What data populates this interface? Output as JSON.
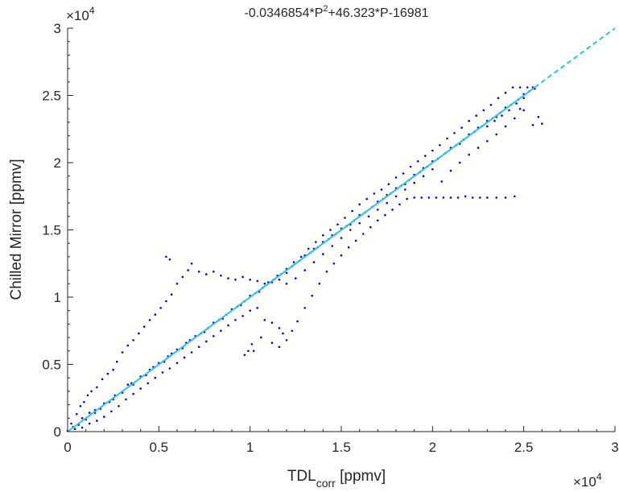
{
  "chart_data": {
    "type": "scatter",
    "title": "-0.0346854*P",
    "title_exp": "2",
    "title_rest": "+46.323*P-16981",
    "xlabel_main": "TDL",
    "xlabel_sub": "corr",
    "xlabel_unit": " [ppmv]",
    "ylabel": "Chilled Mirror [ppmv]",
    "x_multiplier": "×10",
    "x_multiplier_exp": "4",
    "y_multiplier": "×10",
    "y_multiplier_exp": "4",
    "xlim": [
      0,
      30000
    ],
    "ylim": [
      0,
      30000
    ],
    "xticks": [
      0,
      5000,
      10000,
      15000,
      20000,
      25000,
      30000
    ],
    "xtick_labels": [
      "0",
      "0.5",
      "1",
      "1.5",
      "2",
      "2.5",
      "3"
    ],
    "yticks": [
      0,
      5000,
      10000,
      15000,
      20000,
      25000,
      30000
    ],
    "ytick_labels": [
      "0",
      "0.5",
      "1",
      "1.5",
      "2",
      "2.5",
      "3"
    ],
    "grid": false,
    "series": [
      {
        "kind": "scatter",
        "color": "#0000ee",
        "points": [
          [
            0,
            50
          ],
          [
            300,
            350
          ],
          [
            600,
            500
          ],
          [
            800,
            1000
          ],
          [
            1000,
            900
          ],
          [
            1200,
            1400
          ],
          [
            1500,
            1600
          ],
          [
            1800,
            1700
          ],
          [
            2000,
            2100
          ],
          [
            2300,
            2200
          ],
          [
            2600,
            2700
          ],
          [
            3000,
            2900
          ],
          [
            3300,
            3500
          ],
          [
            3600,
            3500
          ],
          [
            4000,
            4100
          ],
          [
            4300,
            4200
          ],
          [
            4700,
            4800
          ],
          [
            5000,
            5100
          ],
          [
            5300,
            5200
          ],
          [
            5700,
            5800
          ],
          [
            6000,
            6100
          ],
          [
            6300,
            6200
          ],
          [
            6700,
            6800
          ],
          [
            7000,
            7100
          ],
          [
            7300,
            7300
          ],
          [
            7700,
            7700
          ],
          [
            8000,
            8100
          ],
          [
            8300,
            8300
          ],
          [
            8700,
            8700
          ],
          [
            9000,
            9100
          ],
          [
            9300,
            9300
          ],
          [
            9700,
            9700
          ],
          [
            10000,
            10100
          ],
          [
            10300,
            10300
          ],
          [
            10700,
            10700
          ],
          [
            11000,
            11100
          ],
          [
            11300,
            11300
          ],
          [
            11700,
            11700
          ],
          [
            12000,
            12100
          ],
          [
            12300,
            12300
          ],
          [
            12700,
            12700
          ],
          [
            13000,
            13100
          ],
          [
            13300,
            13300
          ],
          [
            13700,
            13700
          ],
          [
            14000,
            14100
          ],
          [
            14300,
            14300
          ],
          [
            14700,
            14700
          ],
          [
            15000,
            15100
          ],
          [
            15300,
            15300
          ],
          [
            15700,
            15700
          ],
          [
            16000,
            16100
          ],
          [
            16300,
            16300
          ],
          [
            16700,
            16700
          ],
          [
            17000,
            17100
          ],
          [
            17300,
            17300
          ],
          [
            17700,
            17700
          ],
          [
            18000,
            18100
          ],
          [
            18300,
            18300
          ],
          [
            18700,
            18700
          ],
          [
            19000,
            19100
          ],
          [
            19300,
            19300
          ],
          [
            19700,
            19700
          ],
          [
            20000,
            20100
          ],
          [
            20300,
            20300
          ],
          [
            20700,
            20700
          ],
          [
            21000,
            21100
          ],
          [
            21300,
            21300
          ],
          [
            21700,
            21700
          ],
          [
            22000,
            22100
          ],
          [
            22300,
            22300
          ],
          [
            22700,
            22700
          ],
          [
            23000,
            23100
          ],
          [
            23300,
            23300
          ],
          [
            23700,
            23700
          ],
          [
            24000,
            24100
          ],
          [
            24300,
            24300
          ],
          [
            24700,
            24700
          ],
          [
            25000,
            25100
          ],
          [
            25300,
            25300
          ],
          [
            25500,
            25600
          ],
          [
            200,
            600
          ],
          [
            500,
            1300
          ],
          [
            700,
            1900
          ],
          [
            900,
            2200
          ],
          [
            1100,
            2700
          ],
          [
            1300,
            3000
          ],
          [
            1600,
            3300
          ],
          [
            1900,
            3900
          ],
          [
            2200,
            4300
          ],
          [
            2500,
            4600
          ],
          [
            2700,
            5200
          ],
          [
            3000,
            5900
          ],
          [
            3300,
            6400
          ],
          [
            3600,
            6800
          ],
          [
            3900,
            7300
          ],
          [
            4200,
            7800
          ],
          [
            4500,
            8300
          ],
          [
            4800,
            8700
          ],
          [
            5100,
            9200
          ],
          [
            5400,
            9700
          ],
          [
            5700,
            10200
          ],
          [
            6000,
            11000
          ],
          [
            6300,
            11500
          ],
          [
            6600,
            12000
          ],
          [
            5600,
            12800
          ],
          [
            5400,
            13000
          ],
          [
            6800,
            12500
          ],
          [
            7200,
            11900
          ],
          [
            7600,
            11700
          ],
          [
            8000,
            11900
          ],
          [
            8400,
            11600
          ],
          [
            8800,
            11400
          ],
          [
            9200,
            11300
          ],
          [
            9600,
            11500
          ],
          [
            10000,
            11300
          ],
          [
            10400,
            11200
          ],
          [
            10800,
            11000
          ],
          [
            11200,
            11100
          ],
          [
            11600,
            11300
          ],
          [
            12000,
            11800
          ],
          [
            12400,
            12600
          ],
          [
            12800,
            13000
          ],
          [
            13200,
            13600
          ],
          [
            13600,
            14100
          ],
          [
            14000,
            14600
          ],
          [
            14400,
            15000
          ],
          [
            14800,
            15400
          ],
          [
            15200,
            15900
          ],
          [
            15600,
            16400
          ],
          [
            16000,
            16900
          ],
          [
            16400,
            17300
          ],
          [
            16800,
            17700
          ],
          [
            17200,
            18000
          ],
          [
            17600,
            18400
          ],
          [
            18000,
            18900
          ],
          [
            18400,
            19200
          ],
          [
            18800,
            19700
          ],
          [
            19200,
            20100
          ],
          [
            19600,
            20500
          ],
          [
            20000,
            20900
          ],
          [
            20400,
            21300
          ],
          [
            20800,
            21800
          ],
          [
            21200,
            22200
          ],
          [
            21600,
            22600
          ],
          [
            22000,
            23100
          ],
          [
            22400,
            23500
          ],
          [
            22800,
            23900
          ],
          [
            23200,
            24300
          ],
          [
            23600,
            24800
          ],
          [
            24000,
            25200
          ],
          [
            24400,
            25600
          ],
          [
            24800,
            25600
          ],
          [
            25200,
            25600
          ],
          [
            25600,
            25500
          ],
          [
            25000,
            24800
          ],
          [
            24600,
            24400
          ],
          [
            24200,
            23900
          ],
          [
            23800,
            23500
          ],
          [
            23400,
            23100
          ],
          [
            23000,
            22700
          ],
          [
            400,
            200
          ],
          [
            800,
            300
          ],
          [
            1200,
            600
          ],
          [
            1600,
            800
          ],
          [
            2000,
            1100
          ],
          [
            2400,
            1500
          ],
          [
            2800,
            1900
          ],
          [
            3200,
            2400
          ],
          [
            3600,
            2800
          ],
          [
            4000,
            3200
          ],
          [
            4400,
            3600
          ],
          [
            4800,
            4000
          ],
          [
            5200,
            4400
          ],
          [
            5600,
            4700
          ],
          [
            6000,
            5100
          ],
          [
            6400,
            5500
          ],
          [
            6800,
            5900
          ],
          [
            7200,
            6300
          ],
          [
            7600,
            6700
          ],
          [
            8000,
            7100
          ],
          [
            8400,
            7500
          ],
          [
            8800,
            7900
          ],
          [
            9200,
            8300
          ],
          [
            9600,
            8600
          ],
          [
            10000,
            9000
          ],
          [
            10400,
            9200
          ],
          [
            10800,
            8300
          ],
          [
            11200,
            8100
          ],
          [
            11600,
            7700
          ],
          [
            11800,
            7300
          ],
          [
            12000,
            6800
          ],
          [
            11600,
            6300
          ],
          [
            11200,
            6600
          ],
          [
            10600,
            7000
          ],
          [
            10100,
            6500
          ],
          [
            9900,
            6000
          ],
          [
            9700,
            5700
          ],
          [
            10200,
            6000
          ],
          [
            12300,
            7500
          ],
          [
            12600,
            8200
          ],
          [
            13000,
            9200
          ],
          [
            13400,
            10100
          ],
          [
            13800,
            11000
          ],
          [
            14200,
            11900
          ],
          [
            14600,
            12500
          ],
          [
            15000,
            13100
          ],
          [
            15400,
            13700
          ],
          [
            15800,
            14200
          ],
          [
            16200,
            14700
          ],
          [
            16600,
            15200
          ],
          [
            17000,
            15700
          ],
          [
            17400,
            16100
          ],
          [
            17800,
            16500
          ],
          [
            18200,
            16900
          ],
          [
            18600,
            17300
          ],
          [
            19000,
            17400
          ],
          [
            19400,
            17400
          ],
          [
            19800,
            17400
          ],
          [
            20200,
            17400
          ],
          [
            20600,
            17400
          ],
          [
            21000,
            17400
          ],
          [
            21400,
            17400
          ],
          [
            21800,
            17500
          ],
          [
            22200,
            17400
          ],
          [
            22600,
            17400
          ],
          [
            23000,
            17400
          ],
          [
            23500,
            17400
          ],
          [
            24000,
            17400
          ],
          [
            24500,
            17500
          ],
          [
            20500,
            18600
          ],
          [
            21000,
            19400
          ],
          [
            21500,
            20000
          ],
          [
            22000,
            20600
          ],
          [
            22500,
            21100
          ],
          [
            23000,
            21600
          ],
          [
            23500,
            22100
          ],
          [
            24000,
            22700
          ],
          [
            24500,
            23300
          ],
          [
            25000,
            23900
          ],
          [
            25500,
            22800
          ],
          [
            26000,
            22900
          ],
          [
            25800,
            23400
          ],
          [
            24800,
            24000
          ],
          [
            12000,
            11000
          ],
          [
            12500,
            11400
          ],
          [
            13000,
            12000
          ],
          [
            13500,
            12600
          ],
          [
            14000,
            13200
          ],
          [
            14500,
            13800
          ],
          [
            15000,
            14400
          ],
          [
            15500,
            15000
          ],
          [
            16000,
            15500
          ],
          [
            16500,
            16000
          ],
          [
            17000,
            16500
          ],
          [
            17500,
            17000
          ],
          [
            18000,
            17500
          ],
          [
            18500,
            18000
          ],
          [
            19000,
            18500
          ],
          [
            19500,
            19000
          ],
          [
            20000,
            19500
          ],
          [
            3500,
            3600
          ],
          [
            7500,
            7400
          ],
          [
            11500,
            11600
          ],
          [
            15500,
            15400
          ],
          [
            19500,
            19600
          ],
          [
            23500,
            23400
          ],
          [
            4500,
            4600
          ],
          [
            8500,
            8400
          ],
          [
            13500,
            13600
          ],
          [
            17500,
            17600
          ],
          [
            21500,
            21400
          ],
          [
            2500,
            2400
          ],
          [
            6500,
            6600
          ],
          [
            9500,
            9400
          ],
          [
            14500,
            14600
          ],
          [
            18500,
            18400
          ],
          [
            22500,
            22600
          ],
          [
            1500,
            1400
          ],
          [
            5500,
            5600
          ],
          [
            10500,
            10400
          ]
        ]
      },
      {
        "kind": "line",
        "name": "fit",
        "color": "#28c8d8",
        "points": [
          [
            0,
            0
          ],
          [
            25600,
            25600
          ]
        ]
      },
      {
        "kind": "line",
        "name": "extension",
        "color": "#28c8d8",
        "dashed": true,
        "points": [
          [
            25600,
            25600
          ],
          [
            30000,
            30000
          ]
        ]
      }
    ]
  }
}
